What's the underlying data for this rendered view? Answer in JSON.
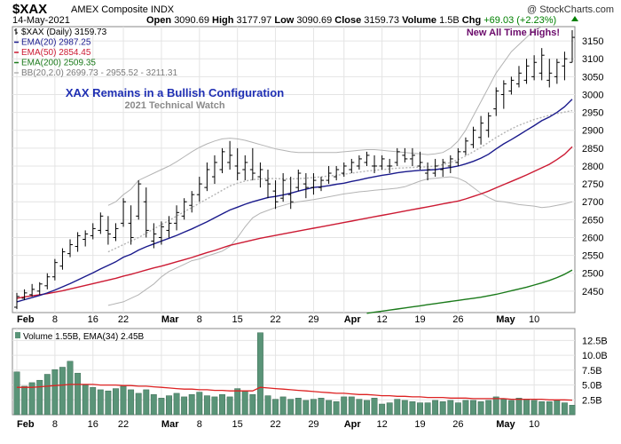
{
  "header": {
    "symbol": "$XAX",
    "name": "AMEX Composite INDX",
    "date": "14-May-2021",
    "open_label": "Open",
    "open": "3090.69",
    "high_label": "High",
    "high": "3177.97",
    "low_label": "Low",
    "low": "3090.69",
    "close_label": "Close",
    "close": "3159.73",
    "volume_label": "Volume",
    "volume": "1.5B",
    "chg_label": "Chg",
    "chg": "+69.03 (+2.23%)",
    "copyright": "@ StockCharts.com"
  },
  "colors": {
    "price": "#000000",
    "ema20": "#1a1a8c",
    "ema50": "#cc1a33",
    "ema200": "#1a7a1a",
    "bb": "#b4b4b4",
    "volume_bar": "#5a9478",
    "volume_ema": "#dd2222",
    "up_arrow": "#008000"
  },
  "chart_data": [
    {
      "type": "ohlc",
      "legend": [
        {
          "key": "price",
          "text": "$XAX (Daily) 3159.73"
        },
        {
          "key": "ema20",
          "text": "EMA(20) 2987.25"
        },
        {
          "key": "ema50",
          "text": "EMA(50) 2854.45"
        },
        {
          "key": "ema200",
          "text": "EMA(200) 2509.35"
        },
        {
          "key": "bb",
          "text": "BB(20,2.0) 2699.73 - 2955.52 - 3211.31"
        }
      ],
      "annotations": {
        "title": "XAX Remains in a Bullish Configuration",
        "subtitle": "2021 Technical Watch",
        "ath": "New All Time Highs!"
      },
      "ylim": [
        2390,
        3190
      ],
      "yticks": [
        "2450",
        "2500",
        "2550",
        "2600",
        "2650",
        "2700",
        "2750",
        "2800",
        "2850",
        "2900",
        "2950",
        "3000",
        "3050",
        "3100",
        "3150"
      ],
      "xticks": [
        {
          "i": 0,
          "label": "Feb",
          "major": true
        },
        {
          "i": 5,
          "label": "8",
          "major": false
        },
        {
          "i": 10,
          "label": "16",
          "major": false
        },
        {
          "i": 14,
          "label": "22",
          "major": false
        },
        {
          "i": 19,
          "label": "Mar",
          "major": true
        },
        {
          "i": 24,
          "label": "8",
          "major": false
        },
        {
          "i": 29,
          "label": "15",
          "major": false
        },
        {
          "i": 34,
          "label": "22",
          "major": false
        },
        {
          "i": 39,
          "label": "29",
          "major": false
        },
        {
          "i": 43,
          "label": "Apr",
          "major": true
        },
        {
          "i": 48,
          "label": "12",
          "major": false
        },
        {
          "i": 53,
          "label": "19",
          "major": false
        },
        {
          "i": 58,
          "label": "26",
          "major": false
        },
        {
          "i": 63,
          "label": "May",
          "major": true
        },
        {
          "i": 68,
          "label": "10",
          "major": false
        }
      ],
      "ohlc": [
        [
          2405,
          2445,
          2400,
          2435
        ],
        [
          2430,
          2455,
          2425,
          2445
        ],
        [
          2440,
          2470,
          2435,
          2455
        ],
        [
          2450,
          2475,
          2440,
          2470
        ],
        [
          2465,
          2500,
          2455,
          2490
        ],
        [
          2490,
          2540,
          2480,
          2530
        ],
        [
          2520,
          2570,
          2510,
          2560
        ],
        [
          2555,
          2595,
          2545,
          2580
        ],
        [
          2575,
          2615,
          2560,
          2605
        ],
        [
          2595,
          2620,
          2575,
          2610
        ],
        [
          2605,
          2640,
          2595,
          2625
        ],
        [
          2620,
          2670,
          2610,
          2660
        ],
        [
          2620,
          2660,
          2580,
          2610
        ],
        [
          2600,
          2640,
          2590,
          2625
        ],
        [
          2640,
          2710,
          2630,
          2700
        ],
        [
          2640,
          2690,
          2580,
          2600
        ],
        [
          2660,
          2760,
          2650,
          2750
        ],
        [
          2700,
          2740,
          2600,
          2620
        ],
        [
          2590,
          2640,
          2570,
          2610
        ],
        [
          2600,
          2645,
          2580,
          2630
        ],
        [
          2620,
          2660,
          2600,
          2640
        ],
        [
          2640,
          2690,
          2620,
          2670
        ],
        [
          2660,
          2710,
          2650,
          2700
        ],
        [
          2690,
          2730,
          2670,
          2720
        ],
        [
          2720,
          2770,
          2700,
          2750
        ],
        [
          2740,
          2810,
          2730,
          2790
        ],
        [
          2770,
          2830,
          2750,
          2810
        ],
        [
          2790,
          2850,
          2780,
          2840
        ],
        [
          2810,
          2870,
          2790,
          2830
        ],
        [
          2800,
          2850,
          2760,
          2780
        ],
        [
          2790,
          2830,
          2760,
          2810
        ],
        [
          2790,
          2850,
          2760,
          2780
        ],
        [
          2770,
          2810,
          2740,
          2790
        ],
        [
          2760,
          2790,
          2710,
          2750
        ],
        [
          2730,
          2760,
          2680,
          2700
        ],
        [
          2710,
          2780,
          2700,
          2760
        ],
        [
          2720,
          2770,
          2680,
          2700
        ],
        [
          2740,
          2790,
          2730,
          2780
        ],
        [
          2750,
          2780,
          2710,
          2740
        ],
        [
          2740,
          2780,
          2720,
          2760
        ],
        [
          2740,
          2770,
          2730,
          2760
        ],
        [
          2760,
          2800,
          2750,
          2780
        ],
        [
          2770,
          2800,
          2760,
          2790
        ],
        [
          2780,
          2810,
          2770,
          2800
        ],
        [
          2790,
          2820,
          2780,
          2810
        ],
        [
          2800,
          2830,
          2790,
          2820
        ],
        [
          2810,
          2840,
          2800,
          2830
        ],
        [
          2800,
          2830,
          2780,
          2800
        ],
        [
          2800,
          2830,
          2790,
          2820
        ],
        [
          2800,
          2820,
          2780,
          2800
        ],
        [
          2810,
          2850,
          2800,
          2840
        ],
        [
          2830,
          2850,
          2810,
          2820
        ],
        [
          2820,
          2850,
          2800,
          2830
        ],
        [
          2800,
          2840,
          2790,
          2810
        ],
        [
          2780,
          2810,
          2760,
          2790
        ],
        [
          2780,
          2820,
          2770,
          2800
        ],
        [
          2790,
          2820,
          2770,
          2810
        ],
        [
          2800,
          2830,
          2780,
          2820
        ],
        [
          2810,
          2850,
          2800,
          2840
        ],
        [
          2840,
          2880,
          2830,
          2870
        ],
        [
          2860,
          2910,
          2850,
          2900
        ],
        [
          2880,
          2940,
          2860,
          2920
        ],
        [
          2900,
          2950,
          2880,
          2940
        ],
        [
          2960,
          3020,
          2940,
          3010
        ],
        [
          3000,
          3040,
          2960,
          3030
        ],
        [
          3010,
          3050,
          3000,
          3040
        ],
        [
          3030,
          3080,
          3020,
          3060
        ],
        [
          3040,
          3100,
          3030,
          3080
        ],
        [
          3050,
          3110,
          3040,
          3090
        ],
        [
          3060,
          3130,
          3040,
          3110
        ],
        [
          3040,
          3100,
          3020,
          3060
        ],
        [
          3050,
          3100,
          3030,
          3090
        ],
        [
          3080,
          3120,
          3040,
          3100
        ],
        [
          3090,
          3180,
          3090,
          3160
        ]
      ],
      "ema20": [
        2420,
        2426,
        2432,
        2438,
        2445,
        2453,
        2462,
        2471,
        2481,
        2491,
        2501,
        2512,
        2522,
        2532,
        2545,
        2553,
        2565,
        2574,
        2582,
        2590,
        2598,
        2606,
        2615,
        2624,
        2634,
        2644,
        2655,
        2666,
        2677,
        2685,
        2693,
        2700,
        2706,
        2712,
        2715,
        2719,
        2724,
        2730,
        2735,
        2740,
        2742,
        2745,
        2749,
        2752,
        2757,
        2761,
        2766,
        2770,
        2774,
        2777,
        2781,
        2784,
        2786,
        2788,
        2789,
        2790,
        2793,
        2796,
        2800,
        2806,
        2813,
        2822,
        2833,
        2848,
        2862,
        2874,
        2887,
        2900,
        2913,
        2927,
        2937,
        2950,
        2966,
        2987
      ],
      "ema50": [
        2430,
        2434,
        2437,
        2440,
        2443,
        2447,
        2451,
        2456,
        2461,
        2466,
        2471,
        2476,
        2481,
        2486,
        2492,
        2497,
        2503,
        2509,
        2515,
        2520,
        2526,
        2532,
        2538,
        2544,
        2551,
        2558,
        2564,
        2571,
        2578,
        2583,
        2588,
        2593,
        2598,
        2602,
        2606,
        2610,
        2614,
        2618,
        2622,
        2626,
        2630,
        2634,
        2638,
        2642,
        2646,
        2650,
        2654,
        2658,
        2662,
        2666,
        2670,
        2674,
        2678,
        2682,
        2686,
        2690,
        2694,
        2698,
        2702,
        2708,
        2715,
        2722,
        2730,
        2739,
        2748,
        2757,
        2766,
        2775,
        2785,
        2795,
        2805,
        2818,
        2833,
        2854
      ],
      "ema200": [
        null,
        null,
        null,
        null,
        null,
        null,
        null,
        null,
        null,
        null,
        null,
        null,
        null,
        null,
        null,
        null,
        null,
        null,
        null,
        null,
        null,
        null,
        null,
        null,
        null,
        null,
        null,
        null,
        null,
        null,
        null,
        null,
        null,
        null,
        null,
        null,
        null,
        null,
        null,
        null,
        null,
        null,
        null,
        null,
        null,
        2385,
        2388,
        2391,
        2394,
        2397,
        2400,
        2403,
        2406,
        2409,
        2412,
        2415,
        2418,
        2421,
        2424,
        2427,
        2430,
        2433,
        2437,
        2441,
        2446,
        2451,
        2456,
        2461,
        2467,
        2473,
        2480,
        2488,
        2497,
        2509
      ],
      "bb_upper": [
        null,
        null,
        null,
        null,
        null,
        null,
        null,
        null,
        null,
        null,
        null,
        null,
        2690,
        2700,
        2720,
        2735,
        2760,
        2770,
        2780,
        2790,
        2800,
        2812,
        2826,
        2840,
        2852,
        2862,
        2870,
        2876,
        2878,
        2876,
        2872,
        2866,
        2860,
        2854,
        2848,
        2844,
        2840,
        2838,
        2838,
        2838,
        2838,
        2838,
        2838,
        2840,
        2842,
        2844,
        2846,
        2846,
        2844,
        2842,
        2840,
        2838,
        2836,
        2834,
        2832,
        2834,
        2838,
        2850,
        2870,
        2900,
        2940,
        2980,
        3020,
        3060,
        3090,
        3120,
        3140,
        3160,
        3180,
        3190,
        3195,
        3200,
        3205,
        3211
      ],
      "bb_middle": [
        null,
        null,
        null,
        null,
        null,
        null,
        null,
        null,
        null,
        null,
        null,
        null,
        2560,
        2570,
        2580,
        2590,
        2600,
        2612,
        2624,
        2636,
        2648,
        2660,
        2672,
        2684,
        2696,
        2708,
        2720,
        2732,
        2744,
        2752,
        2758,
        2762,
        2764,
        2765,
        2765,
        2764,
        2764,
        2765,
        2766,
        2768,
        2770,
        2772,
        2774,
        2777,
        2780,
        2783,
        2786,
        2788,
        2790,
        2792,
        2794,
        2795,
        2796,
        2797,
        2798,
        2800,
        2804,
        2810,
        2818,
        2828,
        2840,
        2852,
        2866,
        2880,
        2892,
        2904,
        2914,
        2922,
        2930,
        2936,
        2942,
        2947,
        2951,
        2955
      ],
      "bb_lower": [
        null,
        null,
        null,
        null,
        null,
        null,
        null,
        null,
        null,
        null,
        null,
        null,
        2410,
        2415,
        2420,
        2430,
        2440,
        2455,
        2470,
        2490,
        2505,
        2515,
        2525,
        2535,
        2540,
        2548,
        2555,
        2562,
        2575,
        2600,
        2630,
        2655,
        2668,
        2676,
        2684,
        2690,
        2696,
        2700,
        2703,
        2706,
        2710,
        2714,
        2718,
        2722,
        2725,
        2728,
        2730,
        2732,
        2734,
        2736,
        2738,
        2742,
        2750,
        2758,
        2764,
        2766,
        2768,
        2770,
        2766,
        2756,
        2740,
        2724,
        2712,
        2702,
        2700,
        2696,
        2692,
        2690,
        2688,
        2684,
        2686,
        2690,
        2694,
        2700
      ]
    },
    {
      "type": "bar",
      "legend": [
        {
          "key": "volume_bar",
          "text": "Volume 1.55B, EMA(34) 2.45B"
        }
      ],
      "ylim": [
        0,
        14.5
      ],
      "yticks": [
        "2.5B",
        "5.0B",
        "7.5B",
        "10.0B",
        "12.5B"
      ],
      "ytick_values": [
        2.5,
        5.0,
        7.5,
        10.0,
        12.5
      ],
      "values": [
        7.2,
        4.8,
        5.4,
        5.8,
        6.8,
        7.6,
        8.0,
        9.0,
        7.0,
        5.0,
        4.6,
        4.2,
        4.0,
        4.4,
        4.8,
        4.2,
        3.6,
        4.2,
        3.4,
        2.8,
        3.2,
        3.6,
        3.0,
        3.4,
        3.8,
        3.2,
        3.0,
        3.4,
        3.0,
        4.4,
        4.0,
        3.4,
        13.8,
        3.2,
        2.6,
        3.0,
        2.6,
        2.8,
        2.4,
        2.6,
        2.8,
        2.4,
        2.2,
        3.0,
        3.0,
        2.6,
        2.4,
        2.8,
        1.8,
        2.0,
        2.6,
        2.4,
        2.2,
        2.0,
        2.0,
        2.4,
        2.2,
        2.4,
        2.0,
        2.4,
        2.4,
        2.2,
        2.4,
        3.0,
        2.6,
        2.4,
        2.8,
        2.6,
        2.4,
        2.2,
        2.2,
        2.4,
        2.0,
        1.6
      ],
      "ema34": [
        4.6,
        4.6,
        4.6,
        4.7,
        4.8,
        4.9,
        5.0,
        5.1,
        5.1,
        5.1,
        5.1,
        5.0,
        5.0,
        5.0,
        4.9,
        4.9,
        4.8,
        4.8,
        4.7,
        4.6,
        4.5,
        4.4,
        4.3,
        4.3,
        4.2,
        4.2,
        4.1,
        4.1,
        4.0,
        4.0,
        4.0,
        4.0,
        4.6,
        4.5,
        4.4,
        4.3,
        4.2,
        4.1,
        4.0,
        3.9,
        3.8,
        3.7,
        3.6,
        3.6,
        3.5,
        3.4,
        3.4,
        3.3,
        3.2,
        3.2,
        3.1,
        3.1,
        3.0,
        3.0,
        2.9,
        2.9,
        2.9,
        2.8,
        2.8,
        2.8,
        2.7,
        2.7,
        2.7,
        2.7,
        2.7,
        2.6,
        2.6,
        2.6,
        2.6,
        2.6,
        2.5,
        2.5,
        2.5,
        2.45
      ]
    }
  ]
}
